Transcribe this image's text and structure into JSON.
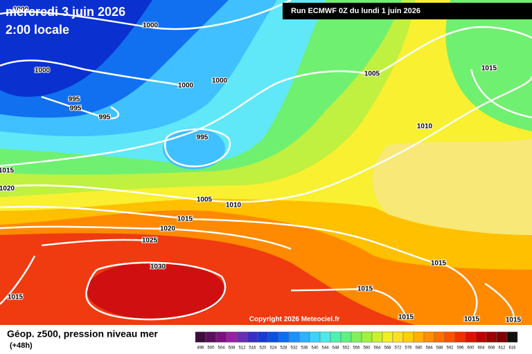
{
  "header": {
    "title": "mercredi 3 juin 2026",
    "subtitle": "2:00 locale",
    "run": "Run ECMWF 0Z du lundi 1 juin 2026"
  },
  "map": {
    "isobar_labels": [
      "1000",
      "1000",
      "1000",
      "1000",
      "1000",
      "995",
      "995",
      "995",
      "995",
      "1005",
      "1015",
      "1010",
      "1015",
      "1020",
      "1005",
      "1010",
      "1015",
      "1020",
      "1025",
      "1030",
      "1015",
      "1015",
      "1015",
      "1015",
      "1015",
      "1015"
    ],
    "copyright": "Copyright 2026 Meteociel.fr"
  },
  "footer": {
    "legend_title": "Géop. z500, pression niveau mer",
    "lead_time": "(+48h)",
    "scale_labels": [
      496,
      500,
      504,
      508,
      512,
      516,
      520,
      524,
      528,
      532,
      536,
      540,
      544,
      548,
      552,
      556,
      560,
      564,
      568,
      572,
      576,
      580,
      584,
      588,
      592,
      596,
      600,
      604,
      608,
      612,
      616
    ],
    "scale_colors": [
      "#3c0c3c",
      "#5a0f5a",
      "#800f80",
      "#9b1fa6",
      "#6a2db0",
      "#3a2dc0",
      "#1a3ad0",
      "#0a50e0",
      "#0a6ef0",
      "#1e90ff",
      "#30b0ff",
      "#40d0ff",
      "#50e8e8",
      "#50f0b0",
      "#60f080",
      "#80f060",
      "#a0f040",
      "#c8f030",
      "#f0f020",
      "#ffe020",
      "#ffd000",
      "#ffb000",
      "#ff9000",
      "#ff7000",
      "#ff5000",
      "#f03000",
      "#e01000",
      "#c00000",
      "#a00000",
      "#800000",
      "#101010"
    ]
  }
}
